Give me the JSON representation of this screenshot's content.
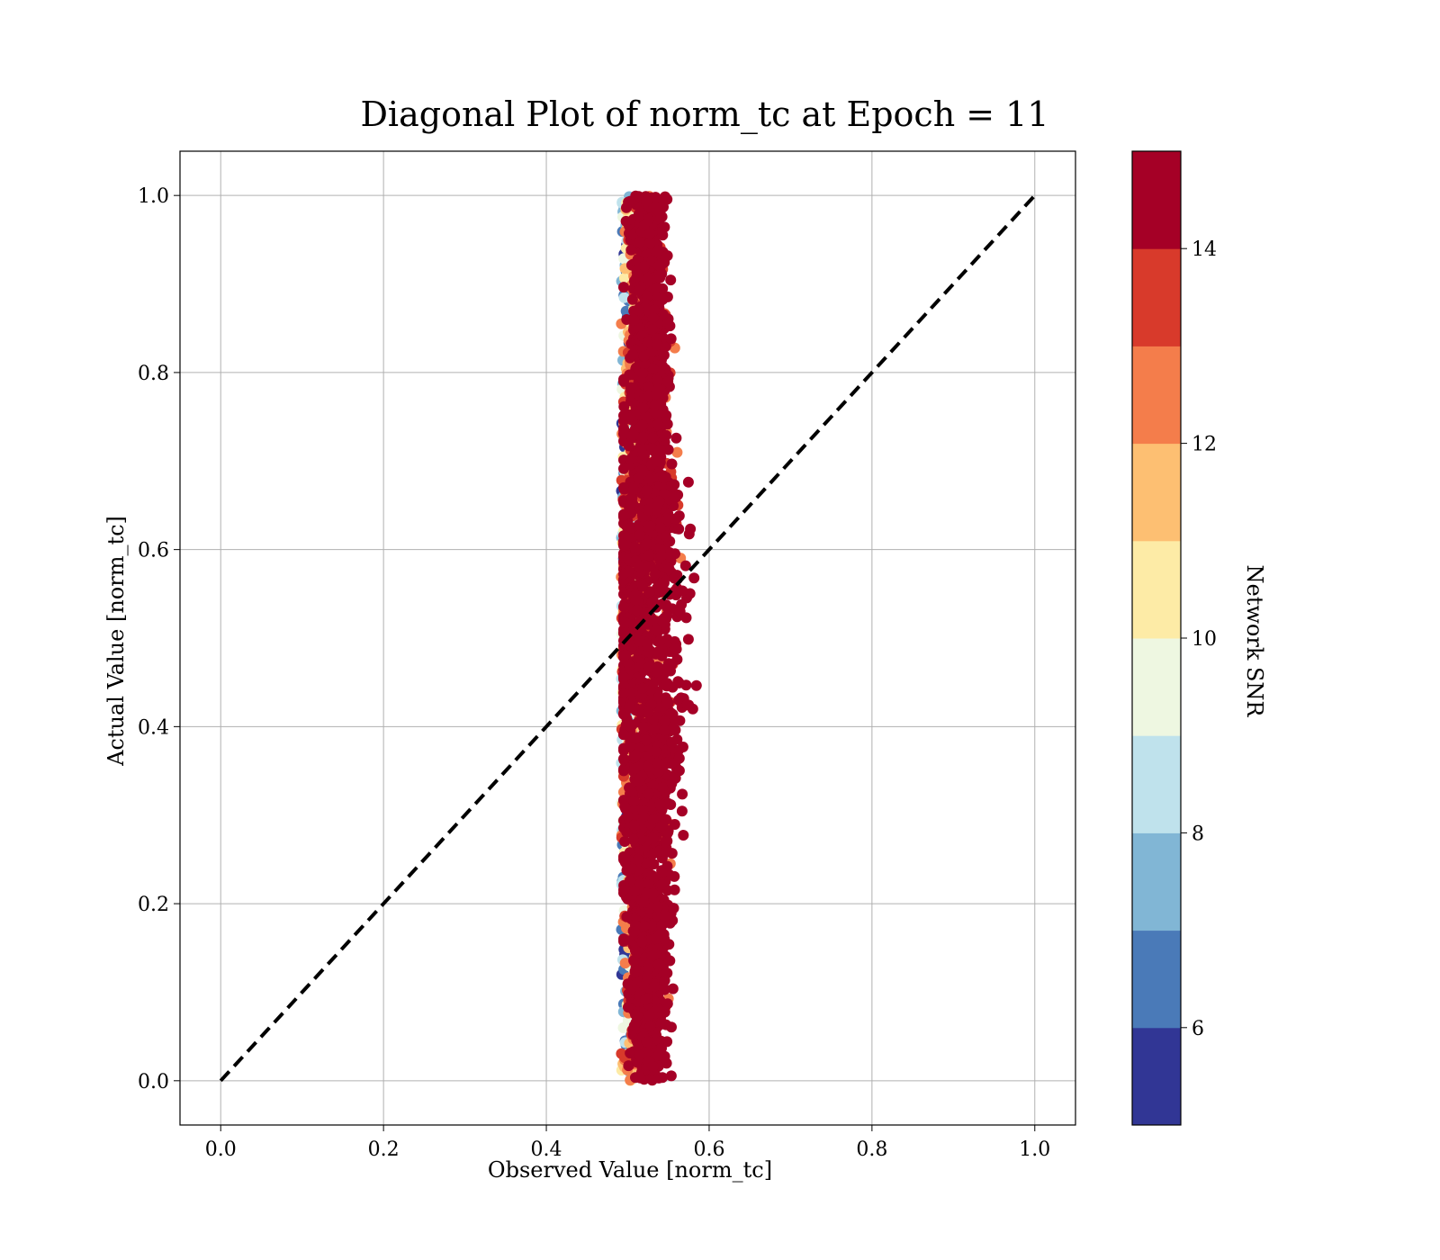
{
  "chart_data": {
    "type": "scatter",
    "title": "Diagonal Plot of norm_tc at Epoch = 11",
    "xlabel": "Observed Value [norm_tc]",
    "ylabel": "Actual Value [norm_tc]",
    "xlim": [
      -0.05,
      1.05
    ],
    "ylim": [
      -0.05,
      1.05
    ],
    "xticks": [
      0.0,
      0.2,
      0.4,
      0.6,
      0.8,
      1.0
    ],
    "xtick_labels": [
      "0.0",
      "0.2",
      "0.4",
      "0.6",
      "0.8",
      "1.0"
    ],
    "yticks": [
      0.0,
      0.2,
      0.4,
      0.6,
      0.8,
      1.0
    ],
    "ytick_labels": [
      "0.0",
      "0.2",
      "0.4",
      "0.6",
      "0.8",
      "1.0"
    ],
    "grid": true,
    "reference_line": {
      "x": [
        0.0,
        1.0
      ],
      "y": [
        0.0,
        1.0
      ],
      "style": "dashed",
      "color": "#000000"
    },
    "colorbar": {
      "label": "Network SNR",
      "range": [
        5,
        15
      ],
      "ticks": [
        6,
        8,
        10,
        12,
        14
      ],
      "tick_labels": [
        "6",
        "8",
        "10",
        "12",
        "14"
      ],
      "levels": [
        {
          "from": 5,
          "to": 6,
          "color": "#313695"
        },
        {
          "from": 6,
          "to": 7,
          "color": "#4a7ab8"
        },
        {
          "from": 7,
          "to": 8,
          "color": "#81b6d5"
        },
        {
          "from": 8,
          "to": 9,
          "color": "#bfe2ec"
        },
        {
          "from": 9,
          "to": 10,
          "color": "#eef7e1"
        },
        {
          "from": 10,
          "to": 11,
          "color": "#fdeba6"
        },
        {
          "from": 11,
          "to": 12,
          "color": "#fdbf72"
        },
        {
          "from": 12,
          "to": 13,
          "color": "#f47d4b"
        },
        {
          "from": 13,
          "to": 14,
          "color": "#d83a2b"
        },
        {
          "from": 14,
          "to": 15,
          "color": "#a50026"
        }
      ]
    },
    "scatter_summary": {
      "description_x_center": 0.525,
      "observed_x_min": 0.49,
      "observed_x_max": 0.59,
      "actual_y_min": 0.0,
      "actual_y_max": 1.0,
      "dominant_snr": 15
    }
  }
}
